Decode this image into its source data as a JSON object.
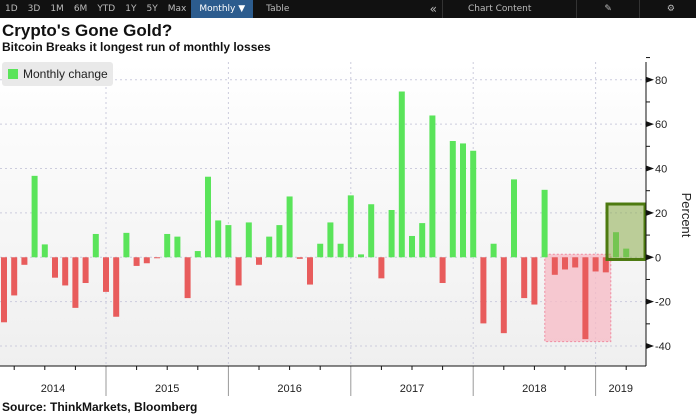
{
  "toolbar": {
    "ranges": [
      "1D",
      "3D",
      "1M",
      "6M",
      "YTD",
      "1Y",
      "5Y",
      "Max"
    ],
    "frequency": "Monthly ▼",
    "table": "Table",
    "collapse": "«",
    "chart_content": "Chart Content",
    "edit_icon": "edit-icon",
    "settings_icon": "gear-icon"
  },
  "title": "Crypto's Gone Gold?",
  "subtitle": "Bitcoin Breaks it longest run of monthly losses",
  "source": "Source: ThinkMarkets, Bloomberg",
  "chart_data": {
    "type": "bar",
    "legend": [
      {
        "name": "Monthly change",
        "color": "#5ae45a"
      }
    ],
    "legend_placement": "top-left",
    "ylabel": "Percent",
    "ylim": [
      -49,
      88
    ],
    "yticks": [
      -40,
      -20,
      0,
      20,
      40,
      60,
      80
    ],
    "year_labels": [
      "2014",
      "2015",
      "2016",
      "2017",
      "2018",
      "2019"
    ],
    "grid": true,
    "colors": {
      "positive": "#5ae45a",
      "negative": "#e85c5c"
    },
    "start_month": "2014-02",
    "values": [
      -29.3,
      -17.2,
      -3.4,
      36.7,
      5.8,
      -9.2,
      -12.7,
      -22.8,
      -11.6,
      10.5,
      -15.6,
      -26.8,
      11,
      -3.9,
      -2.7,
      -0.3,
      10.5,
      9.3,
      -18.4,
      2.8,
      36.3,
      16.6,
      14.5,
      -12.7,
      15.7,
      -3.4,
      9.3,
      14.5,
      27.4,
      -0.7,
      -12.3,
      6.1,
      15.7,
      6.1,
      27.9,
      1.3,
      23.9,
      -9.5,
      21.3,
      74.7,
      9.6,
      15.4,
      63.9,
      -11.6,
      52.4,
      51.3,
      48,
      -29.8,
      6.1,
      -34.2,
      35.1,
      -18.4,
      -21.3,
      30.4,
      -7.9,
      -5.5,
      -4.6,
      -36.9,
      -6.4,
      -6.8,
      11.3,
      3.9
    ],
    "highlights": [
      {
        "from": "2018-08",
        "to": "2019-01",
        "ymin": -38,
        "ymax": 0,
        "color": "#f7b9c4"
      },
      {
        "from": "2019-02",
        "to": "2019-03",
        "ymin": -1,
        "ymax": 24,
        "color": "#8aab4a"
      }
    ]
  }
}
